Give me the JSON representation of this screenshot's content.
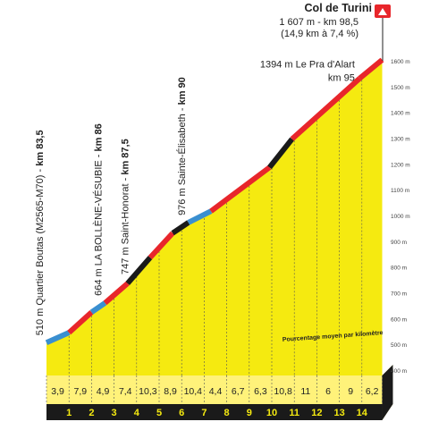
{
  "chart_data": {
    "type": "area",
    "title": "Col de Turini",
    "summit_line1": "1 607 m - km 98,5",
    "summit_line2": "(14,9 km à 7,4 %)",
    "caption": "Pourcentage moyen par kilomètre",
    "ylim": [
      400,
      1600
    ],
    "yticks": [
      "400 m",
      "500 m",
      "600 m",
      "700 m",
      "800 m",
      "900 m",
      "1000 m",
      "1100 m",
      "1200 m",
      "1300 m",
      "1400 m",
      "1500 m",
      "1600 m"
    ],
    "ytick_values": [
      400,
      500,
      600,
      700,
      800,
      900,
      1000,
      1100,
      1200,
      1300,
      1400,
      1500,
      1600
    ],
    "km_labels": [
      "1",
      "2",
      "3",
      "4",
      "5",
      "6",
      "7",
      "8",
      "9",
      "10",
      "11",
      "12",
      "13",
      "14"
    ],
    "percentages": [
      "3,9",
      "7,9",
      "4,9",
      "7,4",
      "10,3",
      "8,9",
      "10,4",
      "4,4",
      "6,7",
      "6,3",
      "10,8",
      "11",
      "6",
      "9",
      "6,2"
    ],
    "segments": [
      {
        "x": 0,
        "elevation": 510,
        "color": "blue"
      },
      {
        "x": 1,
        "elevation": 549,
        "color": "red"
      },
      {
        "x": 2,
        "elevation": 628,
        "color": "blue"
      },
      {
        "x": 2.6,
        "elevation": 664,
        "color": "red"
      },
      {
        "x": 3.6,
        "elevation": 740,
        "color": "black"
      },
      {
        "x": 4.6,
        "elevation": 840,
        "color": "red"
      },
      {
        "x": 5.6,
        "elevation": 935,
        "color": "black"
      },
      {
        "x": 6.3,
        "elevation": 976,
        "color": "blue"
      },
      {
        "x": 7.3,
        "elevation": 1020,
        "color": "red"
      },
      {
        "x": 9.9,
        "elevation": 1190,
        "color": "black"
      },
      {
        "x": 10.9,
        "elevation": 1300,
        "color": "red"
      },
      {
        "x": 13.9,
        "elevation": 1535,
        "color": "red"
      },
      {
        "x": 14.9,
        "elevation": 1607,
        "color": null
      }
    ],
    "colors": {
      "yellow": "#f5ea10",
      "red": "#e8262b",
      "black": "#1a1a1a",
      "blue": "#3a8fd0",
      "base": "#1a1a1a",
      "summit_flag": "#e8262b"
    },
    "annotations": [
      {
        "elevation_text": "510 m Quartier Boutas (M2565-M70) - ",
        "km_text": "km 83,5",
        "x": 0,
        "elevation": 510,
        "orientation": "vertical"
      },
      {
        "elevation_text": "664 m LA BOLLÈNE-VÉSUBIE - ",
        "km_text": "km 86",
        "x": 2.6,
        "elevation": 664,
        "orientation": "vertical"
      },
      {
        "elevation_text": "747 m Saint-Honorat - ",
        "km_text": "km 87,5",
        "x": 3.8,
        "elevation": 747,
        "orientation": "vertical"
      },
      {
        "elevation_text": "976 m Sainte-Élisabeth - ",
        "km_text": "km 90",
        "x": 6.3,
        "elevation": 976,
        "orientation": "vertical"
      },
      {
        "elevation_text": "1394 m Le Pra d'Alart",
        "km_text": "km 95",
        "x": 11.9,
        "elevation": 1394,
        "orientation": "horizontal"
      }
    ]
  }
}
